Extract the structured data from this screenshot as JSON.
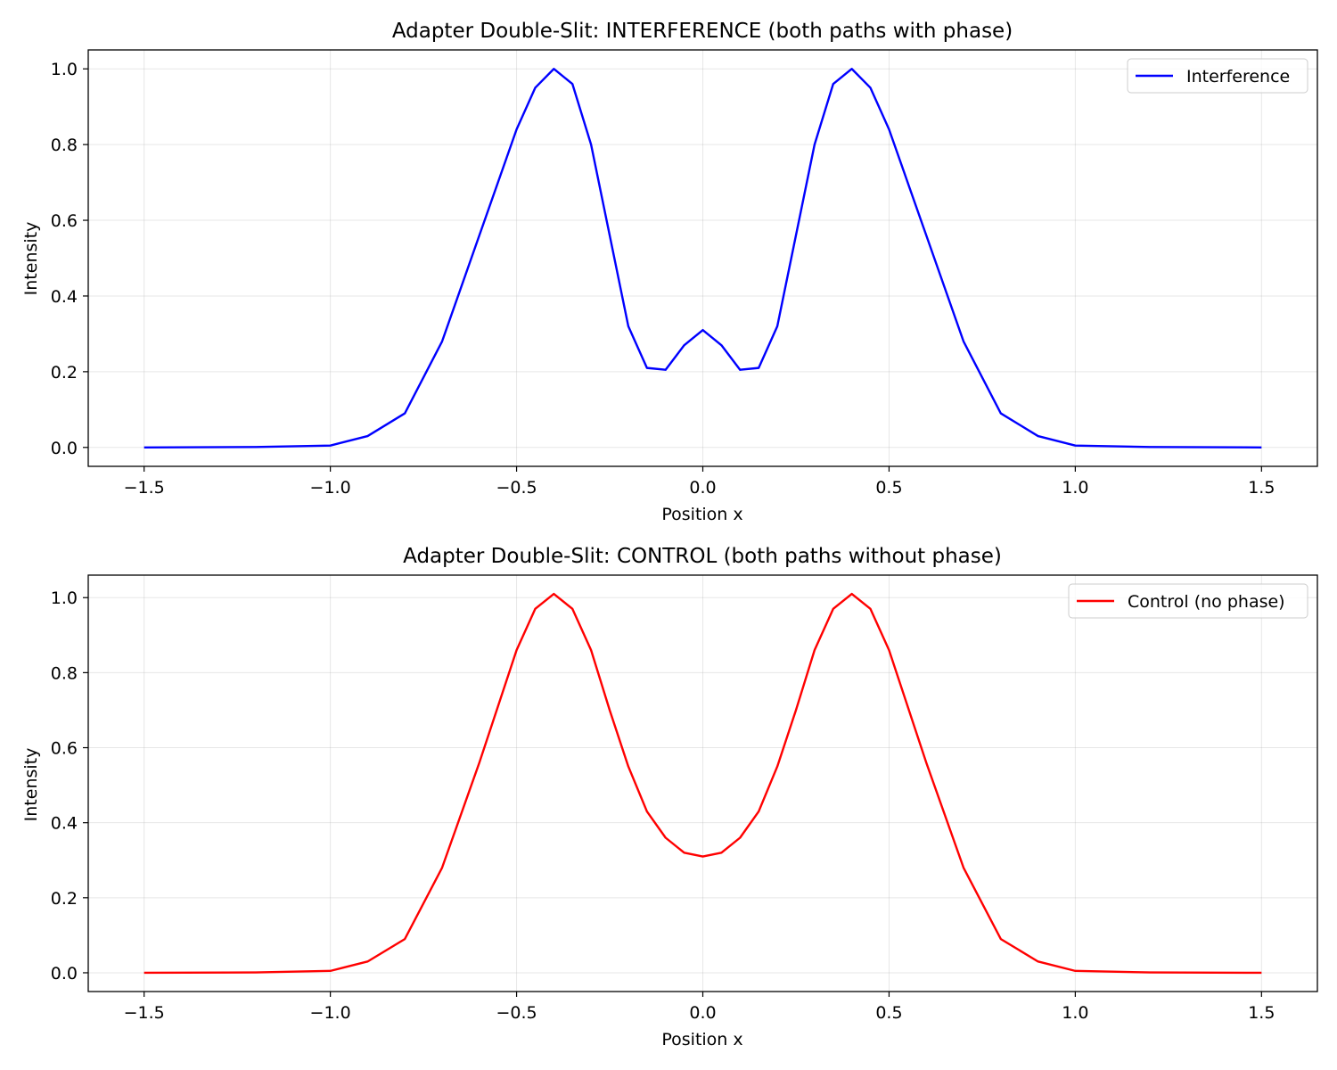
{
  "chart_data": [
    {
      "type": "line",
      "title": "Adapter Double-Slit: INTERFERENCE (both paths with phase)",
      "xlabel": "Position x",
      "ylabel": "Intensity",
      "xlim": [
        -1.65,
        1.65
      ],
      "ylim": [
        -0.05,
        1.05
      ],
      "xticks": [
        -1.5,
        -1.0,
        -0.5,
        0.0,
        0.5,
        1.0,
        1.5
      ],
      "xtick_labels": [
        "−1.5",
        "−1.0",
        "−0.5",
        "0.0",
        "0.5",
        "1.0",
        "1.5"
      ],
      "yticks": [
        0.0,
        0.2,
        0.4,
        0.6,
        0.8,
        1.0
      ],
      "ytick_labels": [
        "0.0",
        "0.2",
        "0.4",
        "0.6",
        "0.8",
        "1.0"
      ],
      "grid": true,
      "legend_position": "top-right",
      "series": [
        {
          "name": "Interference",
          "color": "#0000ff",
          "x": [
            -1.5,
            -1.2,
            -1.0,
            -0.9,
            -0.8,
            -0.7,
            -0.6,
            -0.5,
            -0.45,
            -0.4,
            -0.35,
            -0.3,
            -0.25,
            -0.2,
            -0.15,
            -0.1,
            -0.05,
            0.0,
            0.05,
            0.1,
            0.15,
            0.2,
            0.25,
            0.3,
            0.35,
            0.4,
            0.45,
            0.5,
            0.6,
            0.7,
            0.8,
            0.9,
            1.0,
            1.2,
            1.5
          ],
          "y": [
            0.0,
            0.001,
            0.005,
            0.03,
            0.09,
            0.28,
            0.56,
            0.84,
            0.95,
            1.0,
            0.96,
            0.8,
            0.56,
            0.32,
            0.21,
            0.205,
            0.27,
            0.31,
            0.27,
            0.205,
            0.21,
            0.32,
            0.56,
            0.8,
            0.96,
            1.0,
            0.95,
            0.84,
            0.56,
            0.28,
            0.09,
            0.03,
            0.005,
            0.001,
            0.0
          ]
        }
      ]
    },
    {
      "type": "line",
      "title": "Adapter Double-Slit: CONTROL (both paths without phase)",
      "xlabel": "Position x",
      "ylabel": "Intensity",
      "xlim": [
        -1.65,
        1.65
      ],
      "ylim": [
        -0.05,
        1.06
      ],
      "xticks": [
        -1.5,
        -1.0,
        -0.5,
        0.0,
        0.5,
        1.0,
        1.5
      ],
      "xtick_labels": [
        "−1.5",
        "−1.0",
        "−0.5",
        "0.0",
        "0.5",
        "1.0",
        "1.5"
      ],
      "yticks": [
        0.0,
        0.2,
        0.4,
        0.6,
        0.8,
        1.0
      ],
      "ytick_labels": [
        "0.0",
        "0.2",
        "0.4",
        "0.6",
        "0.8",
        "1.0"
      ],
      "grid": true,
      "legend_position": "top-right",
      "series": [
        {
          "name": "Control (no phase)",
          "color": "#ff0000",
          "x": [
            -1.5,
            -1.2,
            -1.0,
            -0.9,
            -0.8,
            -0.7,
            -0.6,
            -0.5,
            -0.45,
            -0.4,
            -0.35,
            -0.3,
            -0.25,
            -0.2,
            -0.15,
            -0.1,
            -0.05,
            0.0,
            0.05,
            0.1,
            0.15,
            0.2,
            0.25,
            0.3,
            0.35,
            0.4,
            0.45,
            0.5,
            0.6,
            0.7,
            0.8,
            0.9,
            1.0,
            1.2,
            1.5
          ],
          "y": [
            0.0,
            0.001,
            0.005,
            0.03,
            0.09,
            0.28,
            0.56,
            0.86,
            0.97,
            1.01,
            0.97,
            0.86,
            0.7,
            0.55,
            0.43,
            0.36,
            0.32,
            0.31,
            0.32,
            0.36,
            0.43,
            0.55,
            0.7,
            0.86,
            0.97,
            1.01,
            0.97,
            0.86,
            0.56,
            0.28,
            0.09,
            0.03,
            0.005,
            0.001,
            0.0
          ]
        }
      ]
    }
  ]
}
